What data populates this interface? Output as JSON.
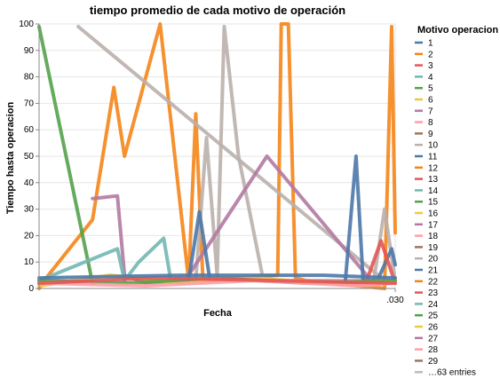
{
  "chart_data": {
    "type": "line",
    "title": "tiempo promedio de cada motivo de operación",
    "xlabel": "Fecha",
    "ylabel": "Tiempo hasta operacion",
    "ylim": [
      0,
      100
    ],
    "yticks": [
      "0",
      "10",
      "20",
      "30",
      "40",
      "50",
      "60",
      "70",
      "80",
      "90",
      "100"
    ],
    "x_tick_label": ".030",
    "xlim": [
      0,
      100
    ],
    "grid": true,
    "legend_placement": "right",
    "legend": {
      "title": "Motivo operacion",
      "entries": [
        "1",
        "2",
        "3",
        "4",
        "5",
        "6",
        "7",
        "8",
        "9",
        "10",
        "11",
        "12",
        "13",
        "14",
        "15",
        "16",
        "17",
        "18",
        "19",
        "20",
        "21",
        "22",
        "23",
        "24",
        "25",
        "26",
        "27",
        "28",
        "29"
      ],
      "more": "…63 entries"
    },
    "colors": [
      "#4c78a8",
      "#f58518",
      "#e45756",
      "#72b7b2",
      "#54a24b",
      "#eeca3b",
      "#b279a2",
      "#ff9da6",
      "#9d755d",
      "#bab0ac",
      "#4c78a8",
      "#f58518",
      "#e45756",
      "#72b7b2",
      "#54a24b",
      "#eeca3b",
      "#b279a2",
      "#ff9da6",
      "#9d755d",
      "#bab0ac",
      "#4c78a8",
      "#f58518",
      "#e45756",
      "#72b7b2",
      "#54a24b",
      "#eeca3b",
      "#b279a2",
      "#ff9da6",
      "#9d755d"
    ],
    "series": [
      {
        "name": "2",
        "x": [
          0,
          2,
          15,
          21,
          24,
          34,
          42,
          44,
          46,
          67,
          68,
          70,
          72,
          75,
          97,
          99,
          100
        ],
        "y": [
          0,
          4,
          26,
          76,
          50,
          100,
          3,
          66,
          3,
          5,
          100,
          100,
          4,
          3,
          0,
          99,
          21
        ]
      },
      {
        "name": "5",
        "x": [
          0,
          15
        ],
        "y": [
          99,
          2
        ]
      },
      {
        "name": "10",
        "x": [
          11,
          97
        ],
        "y": [
          99,
          3
        ]
      },
      {
        "name": "10",
        "x": [
          44,
          47,
          50,
          52,
          56,
          63,
          88,
          94,
          97,
          100
        ],
        "y": [
          3,
          57,
          5,
          99,
          50,
          3,
          3,
          3,
          30,
          3
        ]
      },
      {
        "name": "17",
        "x": [
          15,
          22,
          24,
          30,
          41,
          64,
          92
        ],
        "y": [
          34,
          35,
          5,
          2,
          3,
          50,
          5
        ]
      },
      {
        "name": "4",
        "x": [
          0,
          22,
          24,
          28,
          35,
          37,
          40
        ],
        "y": [
          3,
          15,
          3,
          10,
          19,
          3,
          4
        ]
      },
      {
        "name": "1",
        "x": [
          42,
          45,
          48
        ],
        "y": [
          3,
          29,
          3
        ]
      },
      {
        "name": "11",
        "x": [
          86,
          89,
          91,
          95,
          99,
          100
        ],
        "y": [
          3,
          50,
          3,
          3,
          15,
          9
        ]
      },
      {
        "name": "13",
        "x": [
          92,
          96,
          100
        ],
        "y": [
          3,
          18,
          2
        ]
      },
      {
        "name": "6",
        "x": [
          0,
          20,
          40,
          60,
          80,
          100
        ],
        "y": [
          1,
          5,
          2,
          4,
          2,
          3
        ]
      },
      {
        "name": "15",
        "x": [
          0,
          25,
          50,
          75,
          100
        ],
        "y": [
          3,
          2,
          4,
          2,
          3
        ]
      },
      {
        "name": "18",
        "x": [
          0,
          30,
          60,
          90,
          100
        ],
        "y": [
          2,
          1,
          3,
          1,
          2
        ]
      },
      {
        "name": "3",
        "x": [
          0,
          33,
          66,
          100
        ],
        "y": [
          2,
          4,
          3,
          2
        ]
      },
      {
        "name": "21",
        "x": [
          0,
          40,
          80,
          100
        ],
        "y": [
          4,
          5,
          5,
          4
        ]
      }
    ]
  }
}
